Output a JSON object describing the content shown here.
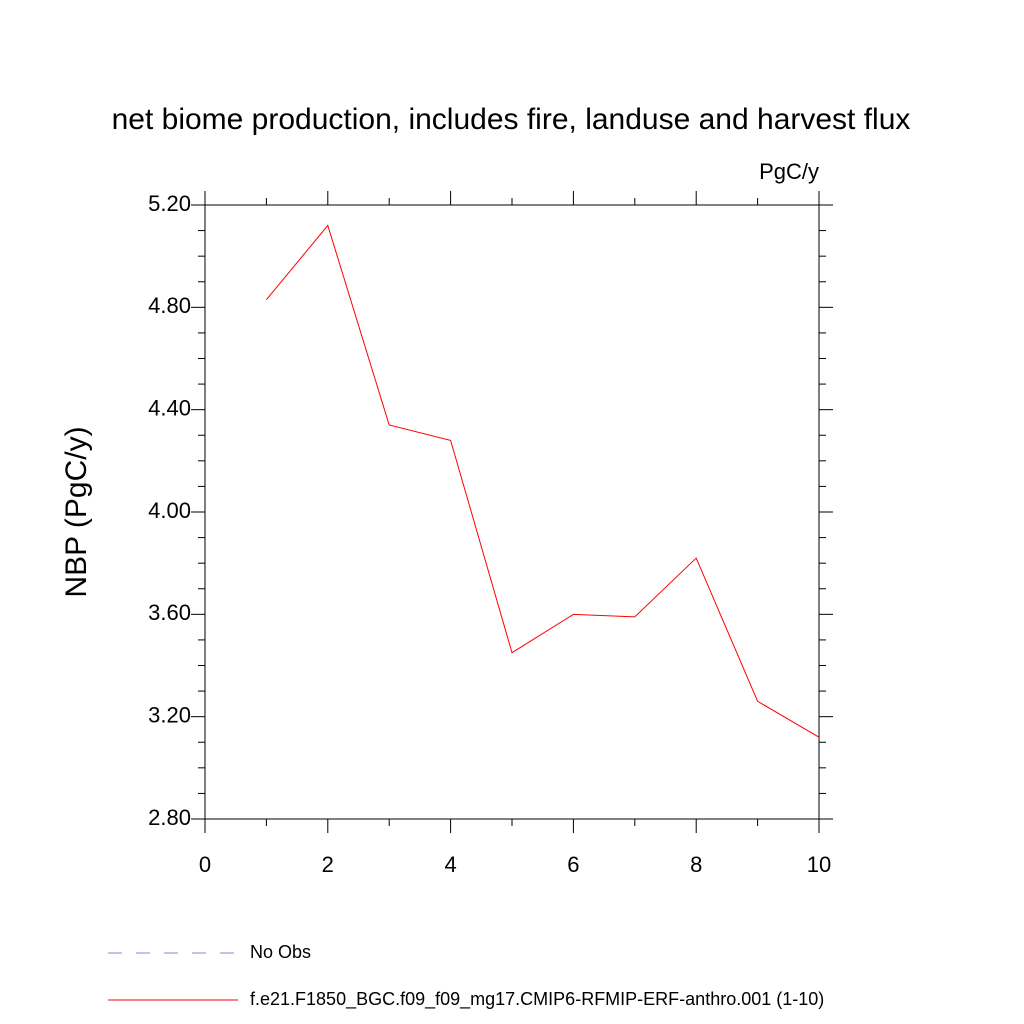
{
  "chart_data": {
    "type": "line",
    "title": "net biome production, includes fire, landuse and harvest flux",
    "units_label": "PgC/y",
    "y_label": "NBP  (PgC/y)",
    "x": [
      1,
      2,
      3,
      4,
      5,
      6,
      7,
      8,
      9,
      10
    ],
    "series": [
      {
        "name": "f.e21.F1850_BGC.f09_f09_mg17.CMIP6-RFMIP-ERF-anthro.001 (1-10)",
        "color": "#ff0000",
        "values": [
          4.83,
          5.12,
          4.34,
          4.28,
          3.45,
          3.6,
          3.59,
          3.82,
          3.26,
          3.12
        ]
      }
    ],
    "reference": {
      "name": "No Obs",
      "color": "#8a8ad0"
    },
    "xlim": [
      0,
      10
    ],
    "xticks": [
      0,
      2,
      4,
      6,
      8,
      10
    ],
    "ylim": [
      2.8,
      5.2
    ],
    "yticks": [
      {
        "value": 2.8,
        "label": "2.80"
      },
      {
        "value": 3.2,
        "label": "3.20"
      },
      {
        "value": 3.6,
        "label": "3.60"
      },
      {
        "value": 4.0,
        "label": "4.00"
      },
      {
        "value": 4.4,
        "label": "4.40"
      },
      {
        "value": 4.8,
        "label": "4.80"
      },
      {
        "value": 5.2,
        "label": "5.20"
      }
    ],
    "grid": false
  }
}
